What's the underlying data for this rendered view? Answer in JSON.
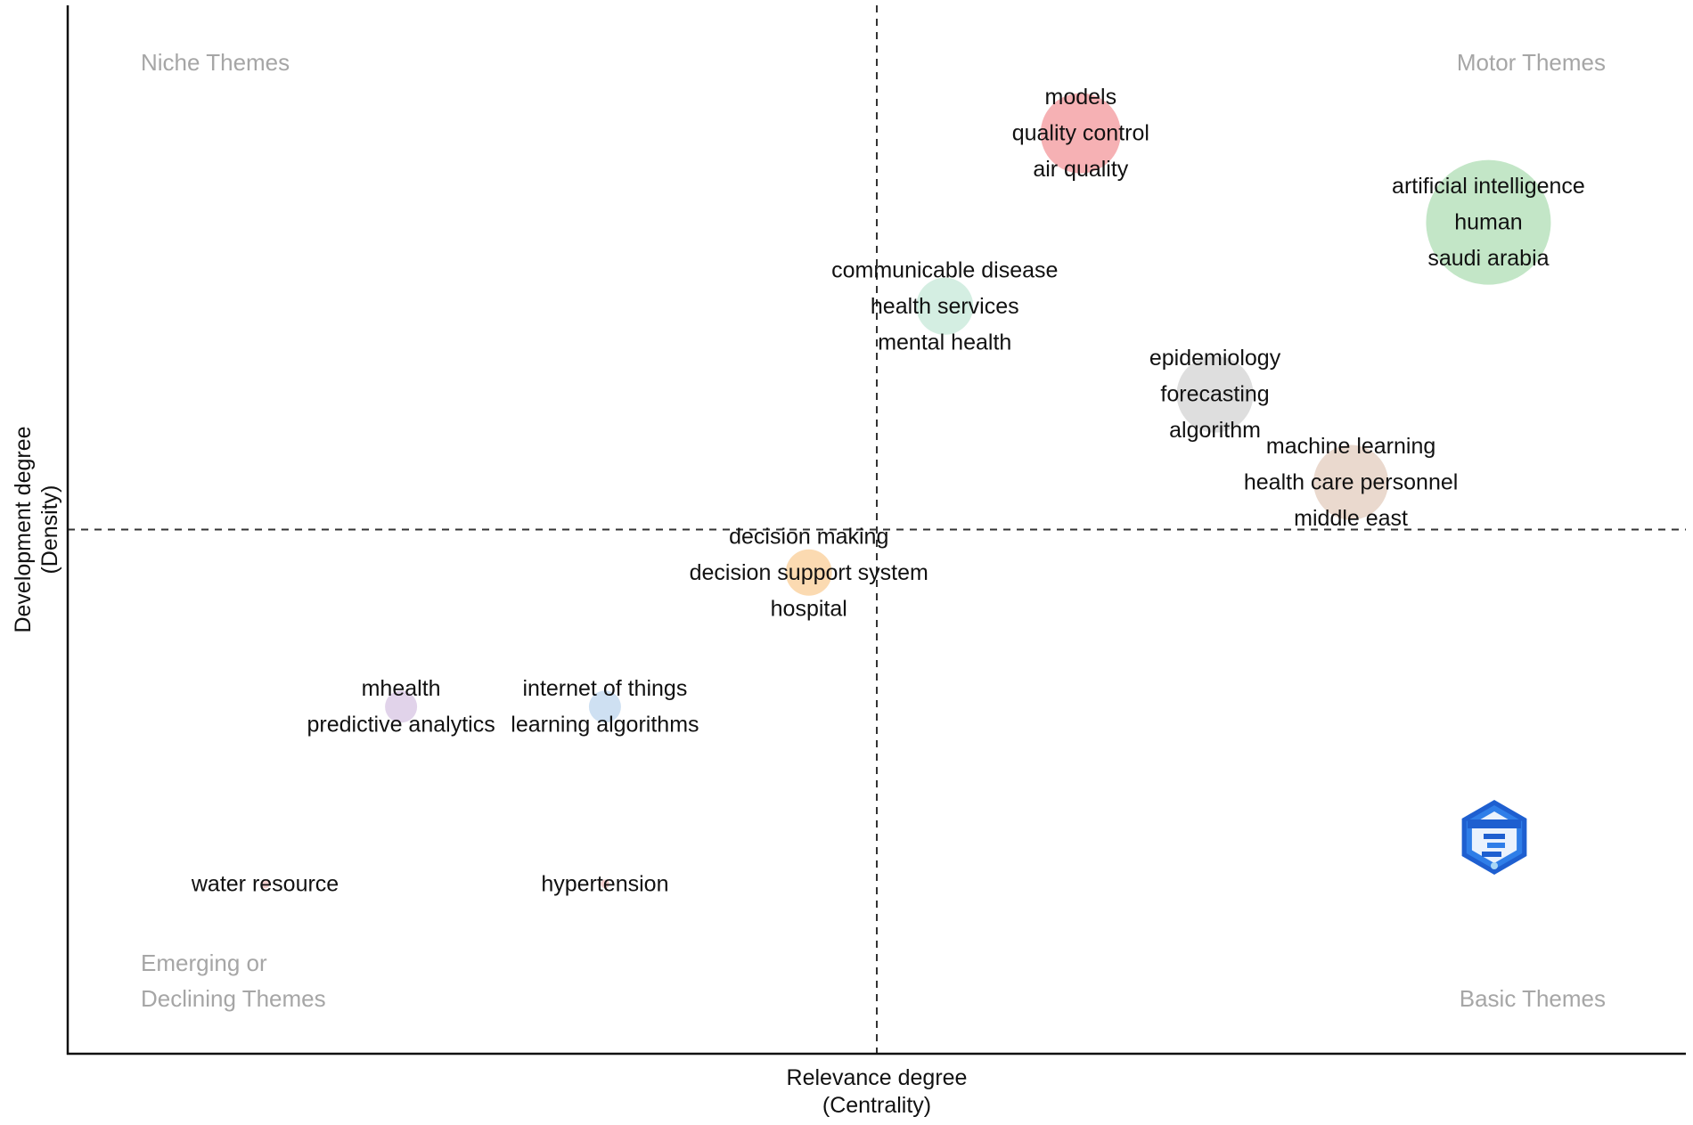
{
  "chart_data": {
    "type": "scatter",
    "subtype": "thematic-map-bubble",
    "xlabel": [
      "Relevance degree",
      "(Centrality)"
    ],
    "ylabel": [
      "Development degree",
      "(Density)"
    ],
    "xlim": [
      0,
      1
    ],
    "ylim": [
      0,
      1
    ],
    "x_divider": 0.5,
    "y_divider": 0.5,
    "grid": false,
    "dividers_style": "dashed",
    "quadrant_labels": [
      {
        "id": "niche",
        "lines": [
          "Niche Themes"
        ],
        "position": "top-left"
      },
      {
        "id": "motor",
        "lines": [
          "Motor Themes"
        ],
        "position": "top-right"
      },
      {
        "id": "emerging",
        "lines": [
          "Emerging or",
          "Declining Themes"
        ],
        "position": "bottom-left"
      },
      {
        "id": "basic",
        "lines": [
          "Basic Themes"
        ],
        "position": "bottom-right"
      }
    ],
    "clusters": [
      {
        "id": "models",
        "x": 0.626,
        "y": 0.878,
        "size": 45,
        "color": "#f5a3a7",
        "labels": [
          "models",
          "quality control",
          "air quality"
        ]
      },
      {
        "id": "artificial-intelligence",
        "x": 0.878,
        "y": 0.793,
        "size": 70,
        "color": "#b8e2bd",
        "labels": [
          "artificial intelligence",
          "human",
          "saudi arabia"
        ]
      },
      {
        "id": "communicable-disease",
        "x": 0.542,
        "y": 0.713,
        "size": 32,
        "color": "#cdebdd",
        "labels": [
          "communicable disease",
          "health services",
          "mental health"
        ]
      },
      {
        "id": "epidemiology",
        "x": 0.709,
        "y": 0.629,
        "size": 43,
        "color": "#d8d8d8",
        "labels": [
          "epidemiology",
          "forecasting",
          "algorithm"
        ]
      },
      {
        "id": "machine-learning",
        "x": 0.793,
        "y": 0.545,
        "size": 42,
        "color": "#e6d2c5",
        "labels": [
          "machine learning",
          "health care personnel",
          "middle east"
        ]
      },
      {
        "id": "decision-making",
        "x": 0.458,
        "y": 0.459,
        "size": 26,
        "color": "#fad3a3",
        "labels": [
          "decision making",
          "decision support system",
          "hospital"
        ]
      },
      {
        "id": "mhealth",
        "x": 0.206,
        "y": 0.331,
        "size": 18,
        "color": "#dccbe6",
        "labels": [
          "mhealth",
          "predictive analytics"
        ]
      },
      {
        "id": "internet-of-things",
        "x": 0.332,
        "y": 0.331,
        "size": 18,
        "color": "#c5daf0",
        "labels": [
          "internet of things",
          "learning algorithms"
        ]
      },
      {
        "id": "water-resource",
        "x": 0.122,
        "y": 0.162,
        "size": 5,
        "color": "#f3c9c9",
        "labels": [
          "water resource"
        ]
      },
      {
        "id": "hypertension",
        "x": 0.332,
        "y": 0.162,
        "size": 5,
        "color": "#f3c9c9",
        "labels": [
          "hypertension"
        ]
      }
    ],
    "logo": {
      "name": "bibliometrix-hexagon-logo",
      "position": "bottom-right",
      "colors": [
        "#1e5fd0",
        "#2f7ee8",
        "#a9d6f5"
      ]
    }
  }
}
